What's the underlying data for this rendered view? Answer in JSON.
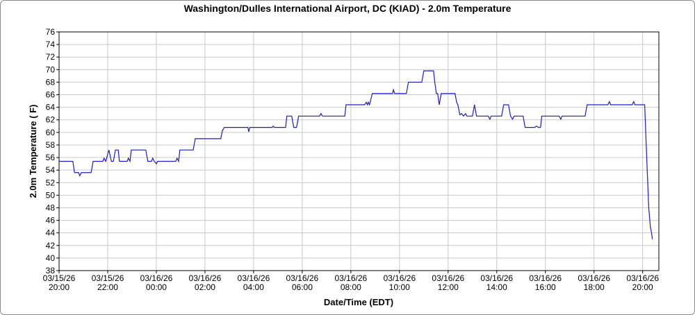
{
  "chart_data": {
    "type": "line",
    "title": "Washington/Dulles International Airport, DC (KIAD) - 2.0m Temperature",
    "x_label": "Date/Time (EDT)",
    "y_label": "2.0m Temperature ( F)",
    "grid": true,
    "ylim": [
      38,
      76
    ],
    "yticks": [
      38,
      40,
      42,
      44,
      46,
      48,
      50,
      52,
      54,
      56,
      58,
      60,
      62,
      64,
      66,
      68,
      70,
      72,
      74,
      76
    ],
    "xlim": [
      "03/15/26 20:00",
      "03/16/26 20:40"
    ],
    "xticks": [
      "03/15/26 20:00",
      "03/15/26 22:00",
      "03/16/26 00:00",
      "03/16/26 02:00",
      "03/16/26 04:00",
      "03/16/26 06:00",
      "03/16/26 08:00",
      "03/16/26 10:00",
      "03/16/26 12:00",
      "03/16/26 14:00",
      "03/16/26 16:00",
      "03/16/26 18:00",
      "03/16/26 20:00"
    ],
    "series": [
      {
        "name": "2.0m Temperature",
        "color": "#1a1acc",
        "x": [
          "03/15/26 20:00",
          "03/15/26 20:34",
          "03/15/26 20:38",
          "03/15/26 20:48",
          "03/15/26 20:51",
          "03/15/26 20:55",
          "03/15/26 21:19",
          "03/15/26 21:24",
          "03/15/26 21:48",
          "03/15/26 21:51",
          "03/15/26 21:55",
          "03/15/26 22:03",
          "03/15/26 22:09",
          "03/15/26 22:14",
          "03/15/26 22:19",
          "03/15/26 22:26",
          "03/15/26 22:29",
          "03/15/26 22:48",
          "03/15/26 22:51",
          "03/15/26 22:55",
          "03/15/26 22:58",
          "03/15/26 23:34",
          "03/15/26 23:39",
          "03/15/26 23:48",
          "03/15/26 23:51",
          "03/15/26 23:55",
          "03/16/26 00:00",
          "03/16/26 00:03",
          "03/16/26 00:48",
          "03/16/26 00:51",
          "03/16/26 00:55",
          "03/16/26 00:58",
          "03/16/26 01:31",
          "03/16/26 01:36",
          "03/16/26 02:39",
          "03/16/26 02:43",
          "03/16/26 02:48",
          "03/16/26 03:46",
          "03/16/26 03:48",
          "03/16/26 03:51",
          "03/16/26 04:46",
          "03/16/26 04:48",
          "03/16/26 04:51",
          "03/16/26 05:19",
          "03/16/26 05:22",
          "03/16/26 05:34",
          "03/16/26 05:39",
          "03/16/26 05:46",
          "03/16/26 05:51",
          "03/16/26 06:43",
          "03/16/26 06:46",
          "03/16/26 06:50",
          "03/16/26 07:45",
          "03/16/26 07:48",
          "03/16/26 08:34",
          "03/16/26 08:38",
          "03/16/26 08:41",
          "03/16/26 08:43",
          "03/16/26 08:46",
          "03/16/26 08:53",
          "03/16/26 09:43",
          "03/16/26 09:45",
          "03/16/26 09:48",
          "03/16/26 10:17",
          "03/16/26 10:22",
          "03/16/26 10:55",
          "03/16/26 11:00",
          "03/16/26 11:24",
          "03/16/26 11:27",
          "03/16/26 11:31",
          "03/16/26 11:34",
          "03/16/26 11:38",
          "03/16/26 11:43",
          "03/16/26 12:17",
          "03/16/26 12:21",
          "03/16/26 12:24",
          "03/16/26 12:29",
          "03/16/26 12:33",
          "03/16/26 12:38",
          "03/16/26 12:43",
          "03/16/26 12:46",
          "03/16/26 13:00",
          "03/16/26 13:05",
          "03/16/26 13:10",
          "03/16/26 13:39",
          "03/16/26 13:43",
          "03/16/26 13:46",
          "03/16/26 14:12",
          "03/16/26 14:17",
          "03/16/26 14:29",
          "03/16/26 14:34",
          "03/16/26 14:39",
          "03/16/26 14:43",
          "03/16/26 15:05",
          "03/16/26 15:10",
          "03/16/26 15:34",
          "03/16/26 15:38",
          "03/16/26 15:43",
          "03/16/26 15:48",
          "03/16/26 15:51",
          "03/16/26 16:34",
          "03/16/26 16:38",
          "03/16/26 16:41",
          "03/16/26 17:38",
          "03/16/26 17:43",
          "03/16/26 18:34",
          "03/16/26 18:38",
          "03/16/26 18:41",
          "03/16/26 19:34",
          "03/16/26 19:38",
          "03/16/26 19:41",
          "03/16/26 20:05",
          "03/16/26 20:10",
          "03/16/26 20:15",
          "03/16/26 20:19",
          "03/16/26 20:22",
          "03/16/26 20:24"
        ],
        "values": [
          55.4,
          55.4,
          53.6,
          53.6,
          53.1,
          53.6,
          53.6,
          55.4,
          55.4,
          55.9,
          55.4,
          57.2,
          55.4,
          55.4,
          57.2,
          57.2,
          55.4,
          55.4,
          55.9,
          55.4,
          57.2,
          57.2,
          55.4,
          55.4,
          55.9,
          55.4,
          55.0,
          55.4,
          55.4,
          55.9,
          55.4,
          57.2,
          57.2,
          59.0,
          59.0,
          60.3,
          60.8,
          60.8,
          60.1,
          60.8,
          60.8,
          61.0,
          60.8,
          60.8,
          62.6,
          62.6,
          60.8,
          60.8,
          62.6,
          62.6,
          63.0,
          62.6,
          62.6,
          64.4,
          64.4,
          64.8,
          64.4,
          64.8,
          64.4,
          66.2,
          66.2,
          66.8,
          66.2,
          66.2,
          68.0,
          68.0,
          69.8,
          69.8,
          68.0,
          66.2,
          66.2,
          64.4,
          66.2,
          66.2,
          64.8,
          64.4,
          62.8,
          63.0,
          62.6,
          63.0,
          62.6,
          62.6,
          64.4,
          62.6,
          62.6,
          62.1,
          62.6,
          62.6,
          64.4,
          64.4,
          62.6,
          62.1,
          62.6,
          62.6,
          60.8,
          60.8,
          61.0,
          60.8,
          60.8,
          62.6,
          62.6,
          62.1,
          62.6,
          62.6,
          64.4,
          64.4,
          64.9,
          64.4,
          64.4,
          64.9,
          64.4,
          64.4,
          56.0,
          48.0,
          45.0,
          44.0,
          43.0
        ]
      }
    ]
  }
}
